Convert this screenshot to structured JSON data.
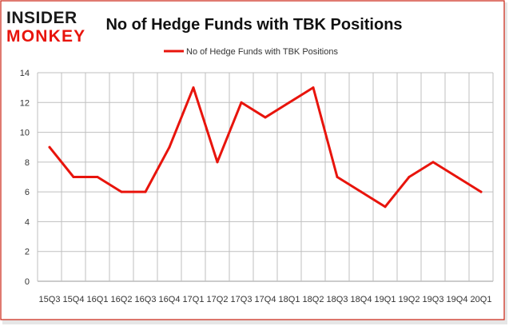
{
  "logo": {
    "line1": "INSIDER",
    "line2": "MONKEY"
  },
  "chart_data": {
    "type": "line",
    "title": "No of Hedge Funds with TBK Positions",
    "xlabel": "",
    "ylabel": "",
    "categories": [
      "15Q3",
      "15Q4",
      "16Q1",
      "16Q2",
      "16Q3",
      "16Q4",
      "17Q1",
      "17Q2",
      "17Q3",
      "17Q4",
      "18Q1",
      "18Q2",
      "18Q3",
      "18Q4",
      "19Q1",
      "19Q2",
      "19Q3",
      "19Q4",
      "20Q1"
    ],
    "series": [
      {
        "name": "No of Hedge Funds with TBK Positions",
        "values": [
          9,
          7,
          7,
          6,
          6,
          9,
          13,
          8,
          12,
          11,
          12,
          13,
          7,
          6,
          5,
          7,
          8,
          7,
          6
        ],
        "color": "#e8140c"
      }
    ],
    "ylim": [
      0,
      14
    ],
    "yticks": [
      0,
      2,
      4,
      6,
      8,
      10,
      12,
      14
    ],
    "grid": true,
    "legend_position": "top-center",
    "colors": {
      "line": "#e8140c",
      "frame_border": "#cc2211",
      "grid": "#bfbfbf",
      "axis_text": "#333333",
      "title_text": "#111111",
      "logo_dark": "#1a1a1a",
      "logo_red": "#e8140c"
    }
  }
}
